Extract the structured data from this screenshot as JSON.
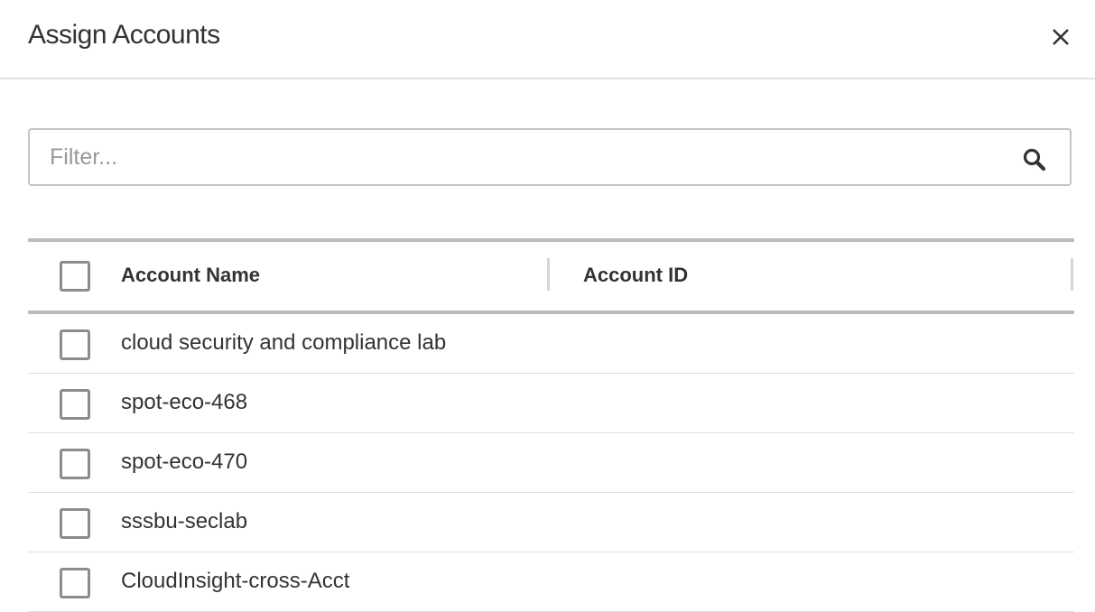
{
  "dialog": {
    "title": "Assign Accounts",
    "close_icon": "close-icon"
  },
  "filter": {
    "placeholder": "Filter...",
    "value": "",
    "icon": "search-icon"
  },
  "table": {
    "columns": [
      "Account Name",
      "Account ID"
    ],
    "rows": [
      {
        "name": "cloud security and compliance lab",
        "id": ""
      },
      {
        "name": "spot-eco-468",
        "id": ""
      },
      {
        "name": "spot-eco-470",
        "id": ""
      },
      {
        "name": "sssbu-seclab",
        "id": ""
      },
      {
        "name": "CloudInsight-cross-Acct",
        "id": ""
      }
    ]
  }
}
